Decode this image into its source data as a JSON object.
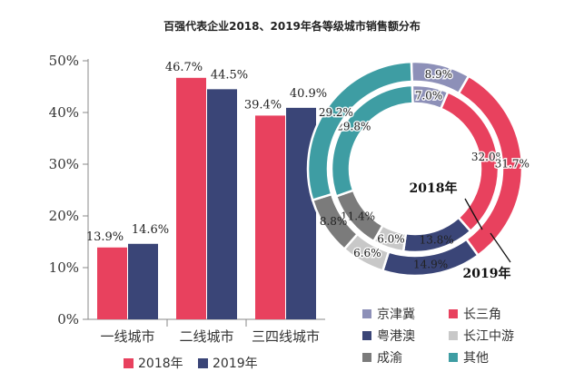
{
  "chart_data": [
    {
      "type": "bar",
      "title": "百强代表企业2018、2019年各等级城市销售额分布",
      "categories": [
        "一线城市",
        "二线城市",
        "三四线城市"
      ],
      "series": [
        {
          "name": "2018年",
          "values": [
            13.9,
            46.7,
            39.4
          ],
          "color": "#e8415e"
        },
        {
          "name": "2019年",
          "values": [
            14.6,
            44.5,
            40.9
          ],
          "color": "#3a4577"
        }
      ],
      "data_labels": [
        [
          "13.9%",
          "46.7%",
          "39.4%"
        ],
        [
          "14.6%",
          "44.5%",
          "40.9%"
        ]
      ],
      "ylim": [
        0,
        50
      ],
      "yticks": [
        "0%",
        "10%",
        "20%",
        "30%",
        "40%",
        "50%"
      ],
      "xlabel": "",
      "ylabel": ""
    },
    {
      "type": "pie",
      "variant": "nested-donut",
      "categories": [
        "京津冀",
        "长三角",
        "粤港澳",
        "长江中游",
        "成渝",
        "其他"
      ],
      "colors": [
        "#8d90b8",
        "#e8415e",
        "#3a4577",
        "#c8c8c8",
        "#7b7b7b",
        "#3e9da3"
      ],
      "series": [
        {
          "name": "2018年",
          "ring": "inner",
          "values": [
            7.0,
            32.0,
            13.8,
            6.0,
            11.4,
            29.8
          ],
          "labels": [
            "7.0%",
            "32.0%",
            "13.8%",
            "6.0%",
            "11.4%",
            "29.8%"
          ]
        },
        {
          "name": "2019年",
          "ring": "outer",
          "values": [
            8.9,
            31.7,
            14.9,
            6.6,
            8.8,
            29.2
          ],
          "labels": [
            "8.9%",
            "31.7%",
            "14.9%",
            "6.6%",
            "8.8%",
            "29.2%"
          ]
        }
      ],
      "ring_annotations": [
        "2018年",
        "2019年"
      ]
    }
  ]
}
